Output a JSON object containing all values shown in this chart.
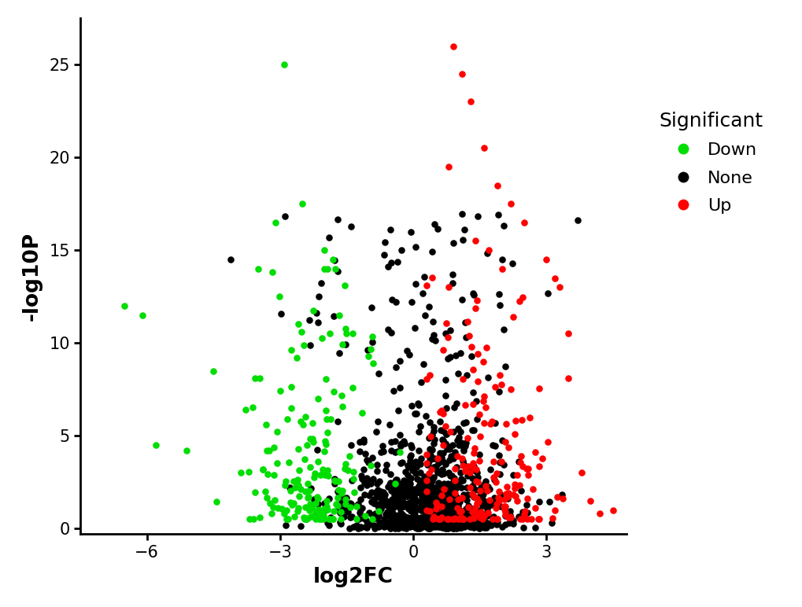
{
  "xlabel": "log2FC",
  "ylabel": "-log10P",
  "legend_title": "Significant",
  "legend_labels": [
    "Down",
    "None",
    "Up"
  ],
  "down_color": "#00DD00",
  "none_color": "#000000",
  "up_color": "#FF0000",
  "xlim": [
    -7.5,
    4.8
  ],
  "ylim": [
    -0.3,
    27.5
  ],
  "xticks": [
    -6,
    -3,
    0,
    3
  ],
  "yticks": [
    0,
    5,
    10,
    15,
    20,
    25
  ],
  "point_size": 38,
  "background_color": "#FFFFFF",
  "seed": 99
}
